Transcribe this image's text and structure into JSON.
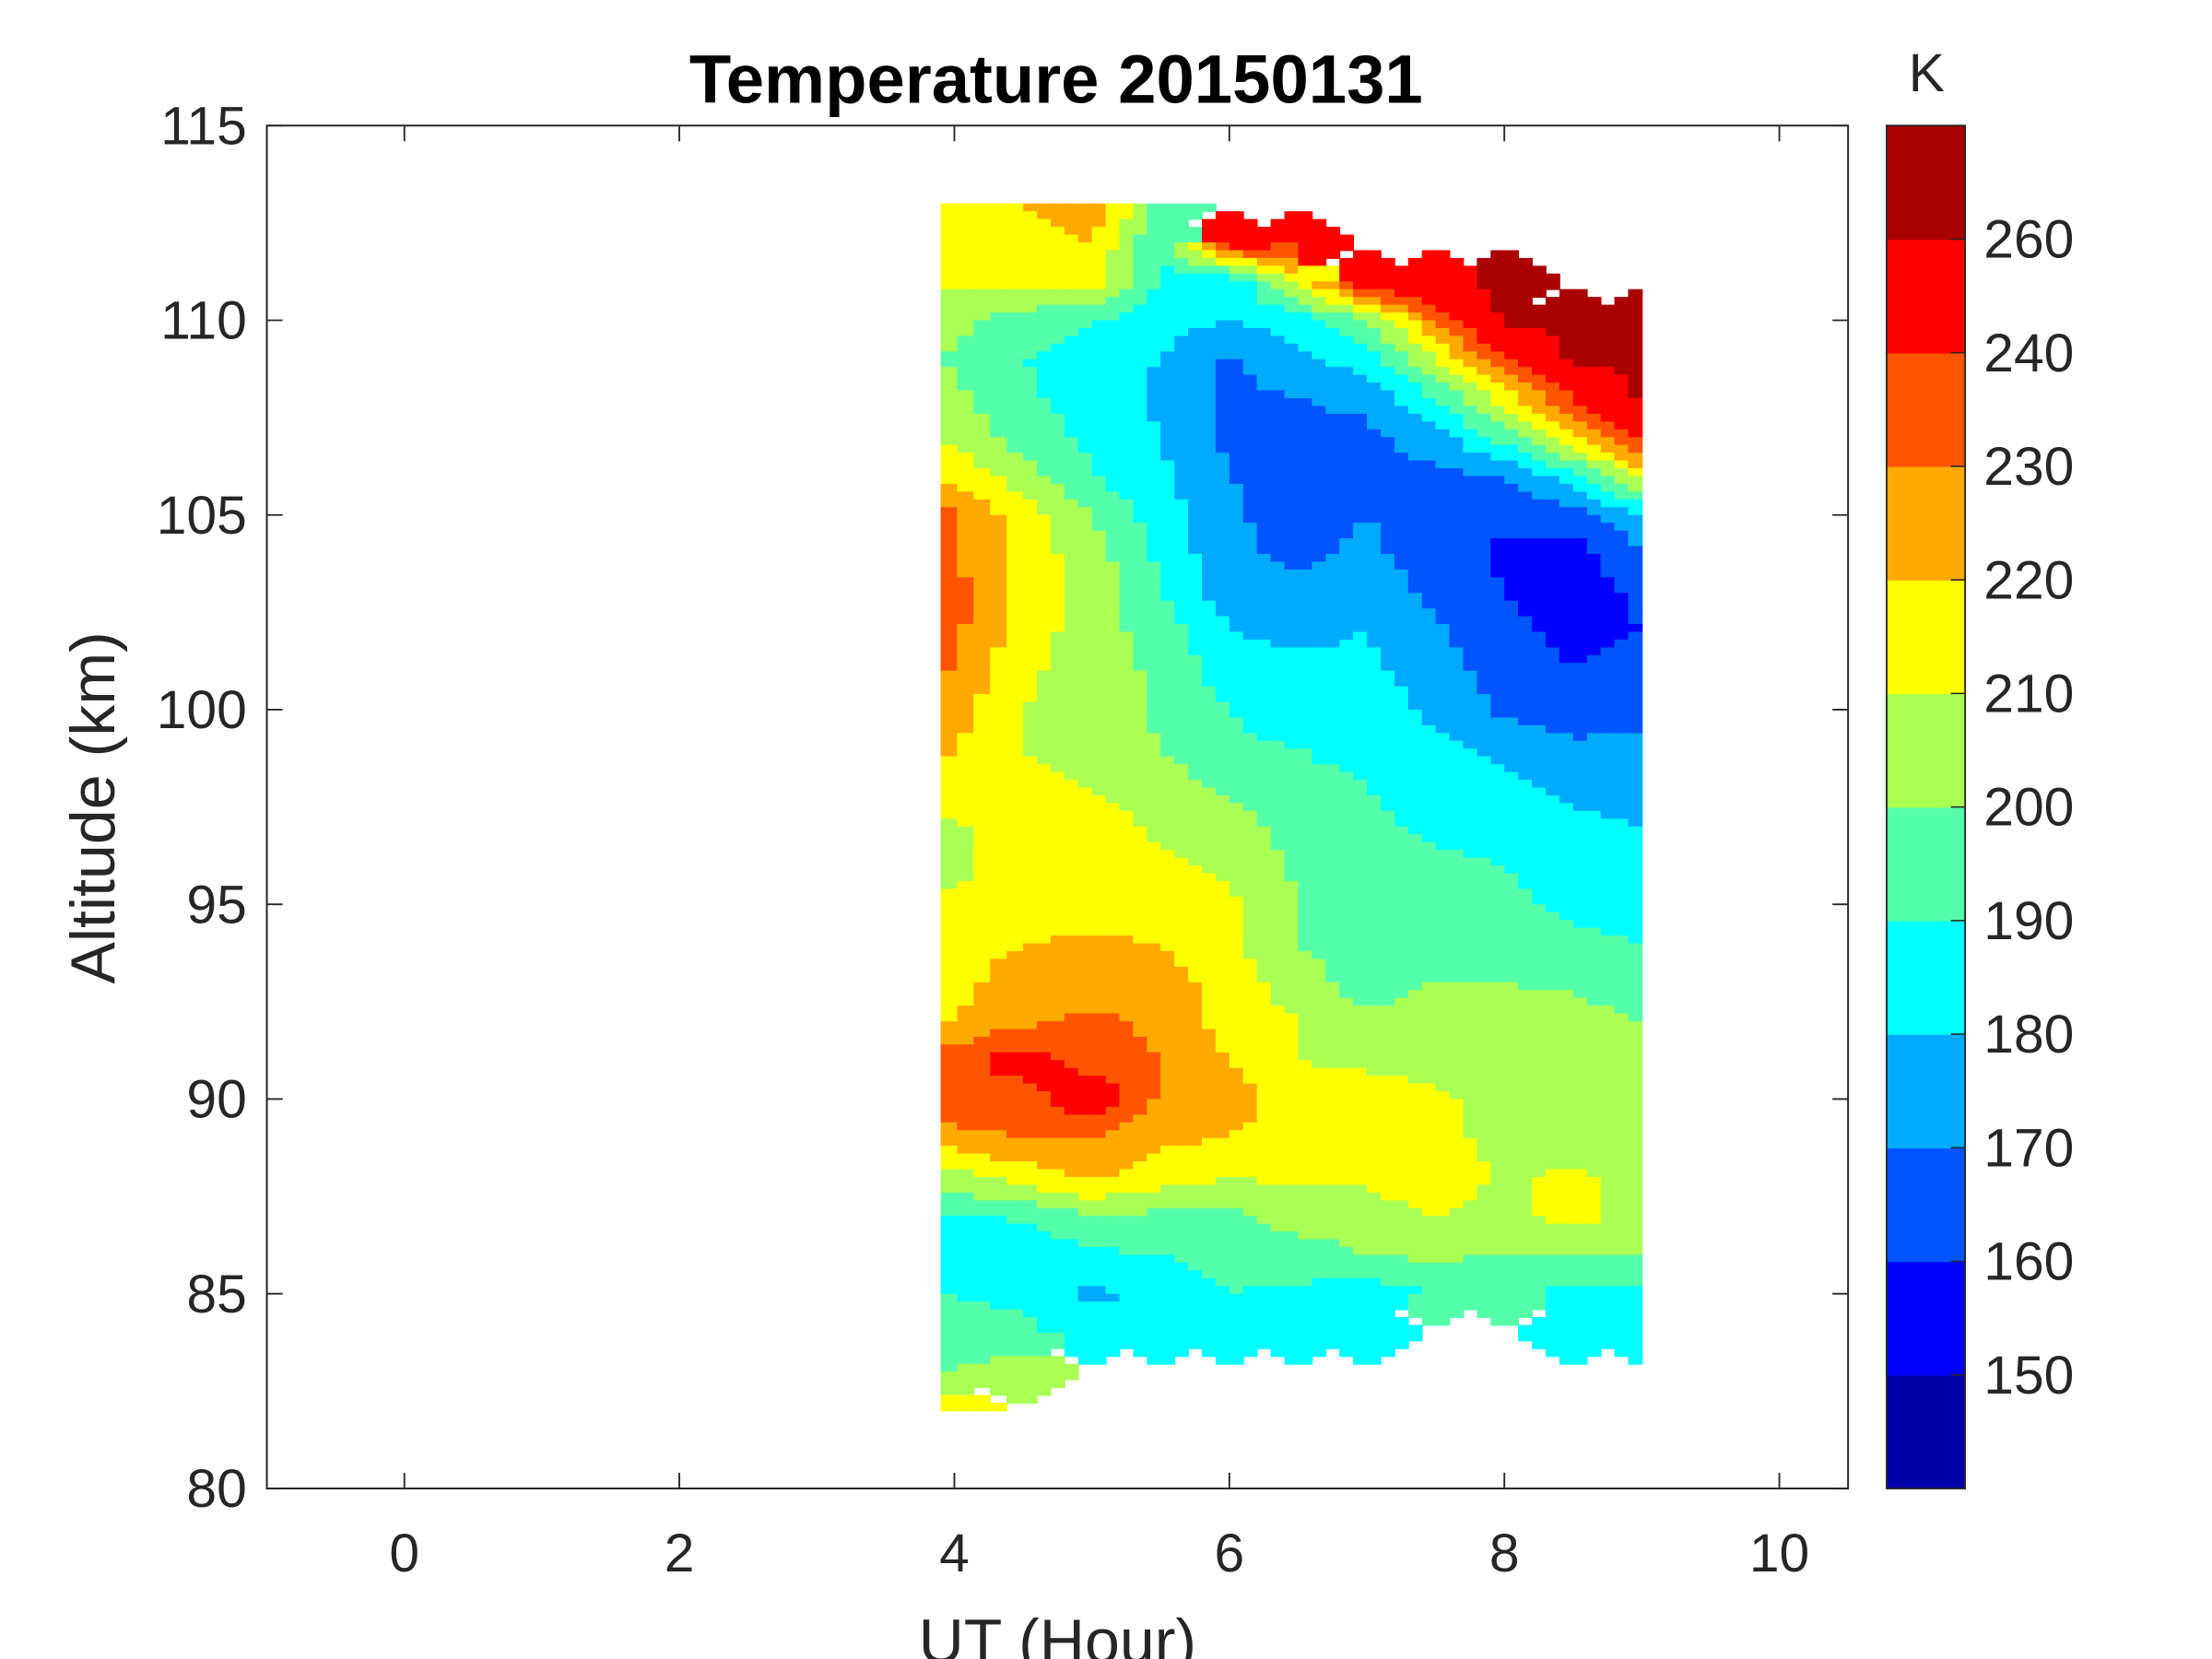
{
  "chart_data": {
    "type": "heatmap",
    "subtype": "filled-contour",
    "title": "Temperature 20150131",
    "xlabel": "UT (Hour)",
    "ylabel": "Altitude (km)",
    "colorbar_label": "K",
    "xlim": [
      -1,
      10.5
    ],
    "ylim": [
      80,
      115
    ],
    "xticks": [
      "0",
      "2",
      "4",
      "6",
      "8",
      "10"
    ],
    "xtick_values": [
      0,
      2,
      4,
      6,
      8,
      10
    ],
    "yticks": [
      "80",
      "85",
      "90",
      "95",
      "100",
      "105",
      "110",
      "115"
    ],
    "ytick_values": [
      80,
      85,
      90,
      95,
      100,
      105,
      110,
      115
    ],
    "colorbar_ticks": [
      "150",
      "160",
      "170",
      "180",
      "190",
      "200",
      "210",
      "220",
      "230",
      "240",
      "260"
    ],
    "colorbar_tick_values": [
      150,
      160,
      170,
      180,
      190,
      200,
      210,
      220,
      230,
      240,
      260
    ],
    "levels": [
      140,
      150,
      160,
      170,
      180,
      190,
      200,
      210,
      220,
      230,
      240,
      260,
      270
    ],
    "level_colors": [
      "#0000aa",
      "#0000ff",
      "#0055ff",
      "#00aaff",
      "#00ffff",
      "#55ffaa",
      "#aaff55",
      "#ffff00",
      "#ffaa00",
      "#ff5500",
      "#ff0000",
      "#aa0000"
    ],
    "grid": false,
    "x": [
      3.9,
      4.5,
      5,
      5.5,
      6,
      6.5,
      7,
      7.5,
      8,
      8.5,
      9
    ],
    "y": [
      113,
      112,
      111,
      110,
      109,
      108,
      107,
      106,
      105,
      104,
      103,
      102,
      101,
      100,
      99,
      98,
      97,
      96,
      95,
      94,
      93,
      92,
      91,
      90,
      89,
      88,
      87,
      86,
      85,
      84,
      83,
      82
    ],
    "z": [
      [
        215,
        220,
        230,
        195,
        null,
        null,
        null,
        null,
        null,
        null,
        null
      ],
      [
        215,
        215,
        220,
        190,
        250,
        240,
        null,
        null,
        null,
        null,
        null
      ],
      [
        212,
        215,
        215,
        188,
        180,
        215,
        248,
        258,
        265,
        null,
        null
      ],
      [
        205,
        195,
        190,
        185,
        180,
        185,
        200,
        230,
        262,
        265,
        265
      ],
      [
        200,
        190,
        185,
        180,
        168,
        178,
        185,
        210,
        240,
        262,
        265
      ],
      [
        205,
        192,
        185,
        178,
        168,
        170,
        172,
        190,
        215,
        240,
        262
      ],
      [
        210,
        195,
        188,
        180,
        168,
        168,
        168,
        175,
        195,
        220,
        245
      ],
      [
        220,
        205,
        190,
        182,
        170,
        165,
        168,
        168,
        170,
        185,
        215
      ],
      [
        235,
        215,
        200,
        185,
        172,
        165,
        170,
        165,
        162,
        165,
        178
      ],
      [
        232,
        215,
        205,
        188,
        172,
        168,
        172,
        165,
        158,
        155,
        170
      ],
      [
        238,
        218,
        205,
        190,
        175,
        172,
        175,
        168,
        160,
        155,
        162
      ],
      [
        236,
        215,
        205,
        195,
        180,
        178,
        180,
        172,
        162,
        158,
        160
      ],
      [
        232,
        212,
        205,
        198,
        185,
        182,
        182,
        175,
        165,
        160,
        162
      ],
      [
        228,
        210,
        205,
        198,
        190,
        185,
        185,
        178,
        168,
        165,
        168
      ],
      [
        222,
        210,
        206,
        200,
        192,
        190,
        188,
        182,
        178,
        172,
        172
      ],
      [
        215,
        212,
        210,
        205,
        198,
        192,
        190,
        185,
        182,
        178,
        176
      ],
      [
        208,
        215,
        215,
        208,
        205,
        195,
        192,
        188,
        185,
        182,
        180
      ],
      [
        205,
        215,
        215,
        212,
        208,
        198,
        195,
        192,
        190,
        185,
        182
      ],
      [
        212,
        215,
        212,
        215,
        212,
        200,
        198,
        195,
        192,
        188,
        185
      ],
      [
        215,
        220,
        222,
        220,
        212,
        200,
        195,
        198,
        195,
        192,
        190
      ],
      [
        215,
        225,
        225,
        225,
        215,
        205,
        195,
        200,
        200,
        198,
        192
      ],
      [
        218,
        228,
        232,
        228,
        215,
        210,
        202,
        205,
        205,
        205,
        200
      ],
      [
        235,
        245,
        235,
        230,
        220,
        210,
        208,
        205,
        205,
        205,
        205
      ],
      [
        240,
        235,
        250,
        228,
        225,
        215,
        215,
        212,
        205,
        205,
        205
      ],
      [
        225,
        230,
        230,
        222,
        220,
        215,
        215,
        215,
        205,
        205,
        205
      ],
      [
        205,
        215,
        222,
        215,
        210,
        212,
        212,
        218,
        208,
        212,
        205
      ],
      [
        188,
        192,
        200,
        198,
        198,
        205,
        205,
        210,
        205,
        215,
        205
      ],
      [
        185,
        180,
        188,
        190,
        195,
        195,
        200,
        202,
        200,
        200,
        200
      ],
      [
        190,
        188,
        178,
        182,
        190,
        188,
        185,
        190,
        190,
        188,
        188
      ],
      [
        195,
        192,
        185,
        185,
        185,
        188,
        185,
        null,
        null,
        185,
        180
      ],
      [
        200,
        205,
        null,
        null,
        null,
        null,
        null,
        null,
        null,
        null,
        null
      ],
      [
        215,
        null,
        null,
        null,
        null,
        null,
        null,
        null,
        null,
        null,
        null
      ]
    ]
  }
}
